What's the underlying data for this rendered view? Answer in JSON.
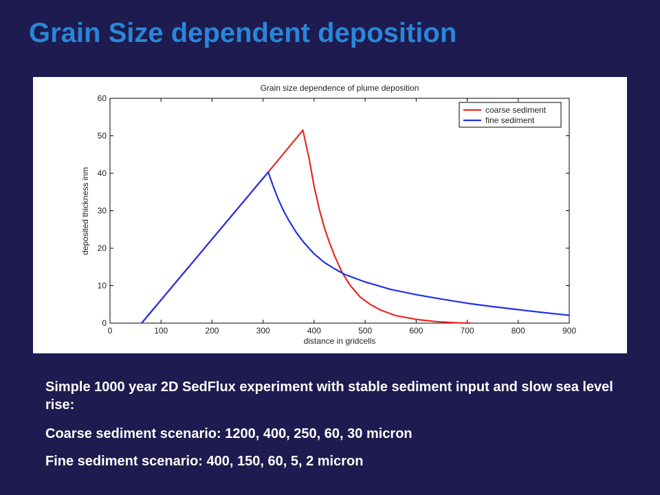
{
  "slide": {
    "title": "Grain Size dependent deposition",
    "caption_lines": [
      "Simple 1000 year 2D SedFlux experiment with stable sediment input and slow sea level rise:",
      "Coarse sediment scenario: 1200, 400, 250, 60, 30 micron",
      "Fine sediment scenario: 400, 150, 60, 5, 2 micron"
    ]
  },
  "colors": {
    "background": "#1d1b4f",
    "title": "#2a86d8",
    "coarse": "#e8281e",
    "fine": "#1f30e6"
  },
  "chart_data": {
    "type": "line",
    "title": "Grain size dependence of plume deposition",
    "xlabel": "distance in gridcells",
    "ylabel": "deposited thickness inm",
    "xlim": [
      0,
      900
    ],
    "ylim": [
      0,
      60
    ],
    "xticks": [
      0,
      100,
      200,
      300,
      400,
      500,
      600,
      700,
      800,
      900
    ],
    "yticks": [
      0,
      10,
      20,
      30,
      40,
      50,
      60
    ],
    "grid": false,
    "legend_position": "top-right",
    "series": [
      {
        "name": "coarse sediment",
        "color": "#e8281e",
        "x": [
          62,
          310,
          378,
          390,
          400,
          410,
          420,
          430,
          440,
          455,
          470,
          490,
          510,
          530,
          560,
          600,
          640,
          680,
          706
        ],
        "y": [
          0,
          40.3,
          51.5,
          44,
          36.5,
          30.5,
          25.5,
          21.5,
          18,
          13.5,
          10.2,
          7,
          5,
          3.5,
          2,
          1,
          0.4,
          0.1,
          0
        ]
      },
      {
        "name": "fine sediment",
        "color": "#1f30e6",
        "x": [
          62,
          310,
          320,
          330,
          340,
          350,
          365,
          380,
          400,
          420,
          440,
          460,
          500,
          550,
          600,
          650,
          700,
          750,
          800,
          850,
          900
        ],
        "y": [
          0,
          40.3,
          36.5,
          33,
          30,
          27.5,
          24.2,
          21.5,
          18.5,
          16.2,
          14.5,
          13,
          11,
          9,
          7.6,
          6.4,
          5.3,
          4.4,
          3.6,
          2.8,
          2.1
        ]
      }
    ]
  }
}
